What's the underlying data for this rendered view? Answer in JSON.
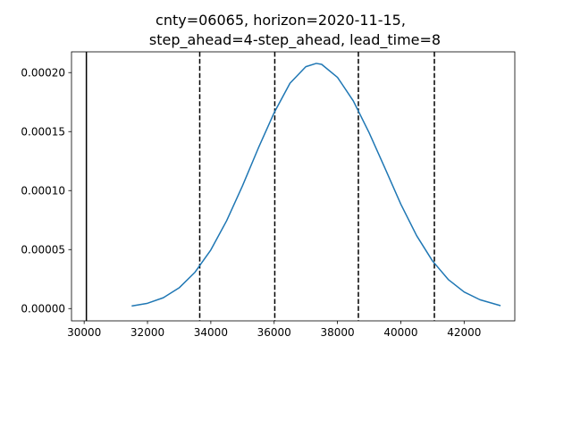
{
  "chart_data": {
    "type": "line",
    "title_lines": [
      "cnty=06065, horizon=2020-11-15,",
      "step_ahead=4-step_ahead, lead_time=8"
    ],
    "xlabel": "",
    "ylabel": "",
    "xlim": [
      29600,
      43600
    ],
    "ylim": [
      -1.04e-05,
      0.0002176
    ],
    "x_ticks": [
      30000,
      32000,
      34000,
      36000,
      38000,
      40000,
      42000
    ],
    "x_tick_labels": [
      "30000",
      "32000",
      "34000",
      "36000",
      "38000",
      "40000",
      "42000"
    ],
    "y_ticks": [
      0,
      5e-05,
      0.0001,
      0.00015,
      0.0002
    ],
    "y_tick_labels": [
      "0.00000",
      "0.00005",
      "0.00010",
      "0.00015",
      "0.00020"
    ],
    "grid": false,
    "series": [
      {
        "color": "#1f77b4",
        "x": [
          31500,
          32000,
          32500,
          33000,
          33500,
          34000,
          34500,
          35000,
          35500,
          36000,
          36500,
          37000,
          37330,
          37500,
          38000,
          38500,
          39000,
          39500,
          40000,
          40500,
          41000,
          41500,
          42000,
          42500,
          43150
        ],
        "y": [
          2.2e-06,
          4.5e-06,
          9.2e-06,
          1.76e-05,
          3.08e-05,
          4.97e-05,
          7.45e-05,
          0.000104,
          0.000136,
          0.000166,
          0.000191,
          0.000205,
          0.0002078,
          0.000207,
          0.000196,
          0.000176,
          0.000149,
          0.000119,
          8.85e-05,
          6.18e-05,
          4.04e-05,
          2.46e-05,
          1.41e-05,
          7.5e-06,
          2.5e-06
        ]
      }
    ],
    "vertical_lines": [
      {
        "x": 30070,
        "style": "solid",
        "color": "#000000"
      },
      {
        "x": 33650,
        "style": "dashed",
        "color": "#000000"
      },
      {
        "x": 36020,
        "style": "dashed",
        "color": "#000000"
      },
      {
        "x": 38660,
        "style": "dashed",
        "color": "#000000"
      },
      {
        "x": 41060,
        "style": "dashed",
        "color": "#000000"
      }
    ]
  }
}
